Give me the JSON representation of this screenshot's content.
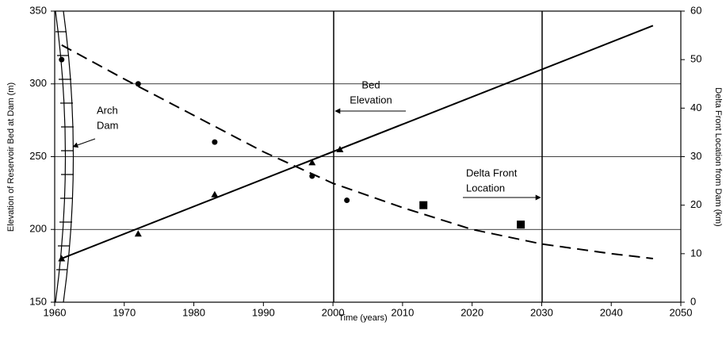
{
  "chart_data": {
    "type": "line",
    "xlabel": "Time (years)",
    "ylabel": "Elevation of Reservoir Bed at Dam (m)",
    "y2label": "Delta Front Location from Dam (km)",
    "xlim": [
      1960,
      2050
    ],
    "xticks": [
      1960,
      1970,
      1980,
      1990,
      2000,
      2010,
      2020,
      2030,
      2040,
      2050
    ],
    "ylim": [
      150,
      350
    ],
    "yticks": [
      150,
      200,
      250,
      300,
      350
    ],
    "y2lim": [
      0,
      60
    ],
    "y2ticks": [
      0,
      10,
      20,
      30,
      40,
      50,
      60
    ],
    "grid": true,
    "annotations": [
      {
        "text": [
          "Arch",
          "Dam"
        ]
      },
      {
        "text": [
          "Bed",
          "Elevation"
        ]
      },
      {
        "text": [
          "Delta Front",
          "Location"
        ]
      }
    ],
    "series": [
      {
        "mark": "line",
        "dash": false,
        "color": "#000000",
        "axis": "y",
        "x": [
          1961,
          2046
        ],
        "values": [
          180,
          340
        ]
      },
      {
        "mark": "triangle",
        "color": "#000000",
        "axis": "y",
        "x": [
          1961,
          1972,
          1983,
          1997,
          2001
        ],
        "values": [
          180,
          197,
          224,
          246,
          255
        ]
      },
      {
        "mark": "line",
        "dash": true,
        "color": "#000000",
        "axis": "y2",
        "x": [
          1961,
          1970,
          1980,
          1990,
          2000,
          2010,
          2020,
          2030,
          2040,
          2046
        ],
        "values": [
          53,
          46,
          38.5,
          31,
          24.5,
          19.5,
          15,
          12,
          10,
          9
        ]
      },
      {
        "mark": "circle",
        "color": "#000000",
        "axis": "y2",
        "x": [
          1961,
          1972,
          1983,
          1997,
          2002
        ],
        "values": [
          50,
          45,
          33,
          26,
          21
        ]
      },
      {
        "mark": "square",
        "color": "#000000",
        "axis": "y2",
        "x": [
          2013,
          2027
        ],
        "values": [
          20,
          16
        ]
      }
    ]
  }
}
